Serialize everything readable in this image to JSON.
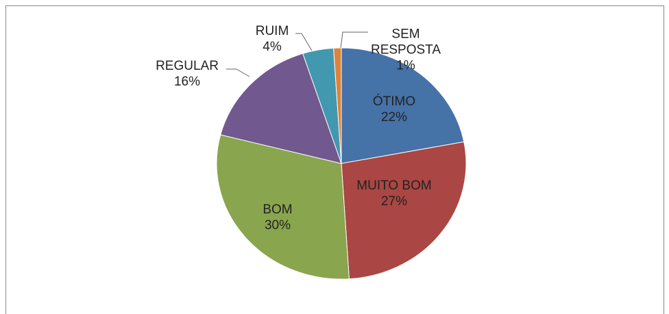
{
  "chart_data": {
    "type": "pie",
    "categories": [
      "ÓTIMO",
      "MUITO BOM",
      "BOM",
      "REGULAR",
      "RUIM",
      "SEM RESPOSTA"
    ],
    "values": [
      22,
      27,
      30,
      16,
      4,
      1
    ],
    "value_labels": [
      "22%",
      "27%",
      "30%",
      "16%",
      "4%",
      "1%"
    ],
    "colors": [
      "#4572a7",
      "#aa4643",
      "#89a54e",
      "#71588f",
      "#4198af",
      "#db843d"
    ]
  }
}
